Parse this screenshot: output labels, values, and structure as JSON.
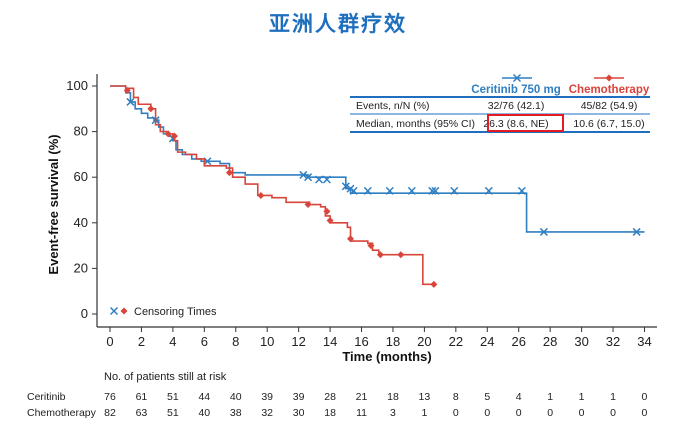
{
  "page": {
    "title": "亚洲人群疗效"
  },
  "colors": {
    "ceritinib": "#2f7fc1",
    "chemo": "#d9453a",
    "axis": "#333333",
    "header_blue": "#1f6fbf",
    "highlight": "#e31b23"
  },
  "chart_data": {
    "type": "line",
    "xlabel": "Time (months)",
    "ylabel": "Event-free survival (%)",
    "xlim": [
      0,
      35
    ],
    "ylim": [
      0,
      100
    ],
    "xticks": [
      "0",
      "2",
      "4",
      "6",
      "8",
      "10",
      "12",
      "14",
      "16",
      "18",
      "20",
      "22",
      "24",
      "26",
      "28",
      "30",
      "32",
      "34"
    ],
    "yticks": [
      "0",
      "20",
      "40",
      "60",
      "80",
      "100"
    ],
    "grid": false,
    "series": [
      {
        "name": "Ceritinib 750 mg",
        "color": "#2f7fc1",
        "points": [
          [
            0,
            100
          ],
          [
            1,
            97
          ],
          [
            1.3,
            93
          ],
          [
            1.6,
            90
          ],
          [
            2,
            88
          ],
          [
            2.4,
            86
          ],
          [
            2.8,
            85
          ],
          [
            3.1,
            82
          ],
          [
            3.4,
            79
          ],
          [
            3.8,
            78
          ],
          [
            4,
            76
          ],
          [
            4.2,
            72
          ],
          [
            4.6,
            70
          ],
          [
            5.2,
            68
          ],
          [
            5.8,
            67
          ],
          [
            7,
            66
          ],
          [
            7.6,
            62
          ],
          [
            8.6,
            61
          ],
          [
            12.2,
            61
          ],
          [
            12.6,
            60
          ],
          [
            15,
            55
          ],
          [
            15.3,
            53
          ],
          [
            26.2,
            53
          ],
          [
            26.5,
            36
          ],
          [
            34,
            36
          ]
        ],
        "censors": [
          [
            1.3,
            93
          ],
          [
            2.9,
            85
          ],
          [
            4,
            77
          ],
          [
            6.2,
            67
          ],
          [
            12.3,
            61
          ],
          [
            12.6,
            60
          ],
          [
            13.3,
            59
          ],
          [
            13.8,
            59
          ],
          [
            15.0,
            56
          ],
          [
            15.3,
            55
          ],
          [
            15.5,
            54
          ],
          [
            16.4,
            54
          ],
          [
            17.8,
            54
          ],
          [
            19.2,
            54
          ],
          [
            20.5,
            54
          ],
          [
            20.7,
            54
          ],
          [
            21.9,
            54
          ],
          [
            24.1,
            54
          ],
          [
            26.2,
            54
          ],
          [
            27.6,
            36
          ],
          [
            33.5,
            36
          ]
        ]
      },
      {
        "name": "Chemotherapy",
        "color": "#d9453a",
        "points": [
          [
            0,
            100
          ],
          [
            1,
            99
          ],
          [
            1.5,
            95
          ],
          [
            1.8,
            92
          ],
          [
            2.6,
            90
          ],
          [
            2.9,
            83
          ],
          [
            3.2,
            80
          ],
          [
            3.6,
            79
          ],
          [
            4.1,
            76
          ],
          [
            4.3,
            71
          ],
          [
            4.8,
            70
          ],
          [
            5.5,
            68
          ],
          [
            6,
            65
          ],
          [
            7.4,
            64
          ],
          [
            7.8,
            60
          ],
          [
            8.6,
            57
          ],
          [
            9.4,
            52
          ],
          [
            10.3,
            51
          ],
          [
            11.2,
            49
          ],
          [
            12.7,
            48
          ],
          [
            13.4,
            47
          ],
          [
            13.7,
            43
          ],
          [
            14,
            40
          ],
          [
            15.1,
            38
          ],
          [
            15.3,
            32
          ],
          [
            16.4,
            31
          ],
          [
            16.7,
            28
          ],
          [
            17.1,
            26
          ],
          [
            18.3,
            26
          ],
          [
            19.7,
            26
          ],
          [
            19.9,
            13
          ],
          [
            20.6,
            13
          ]
        ],
        "censors": [
          [
            1.1,
            98
          ],
          [
            2.6,
            90
          ],
          [
            3.7,
            79
          ],
          [
            4.1,
            78
          ],
          [
            7.6,
            62
          ],
          [
            9.6,
            52
          ],
          [
            12.6,
            48
          ],
          [
            13.8,
            45
          ],
          [
            14.0,
            41
          ],
          [
            15.3,
            33
          ],
          [
            16.6,
            30
          ],
          [
            17.2,
            26
          ],
          [
            18.5,
            26
          ],
          [
            20.6,
            13
          ]
        ]
      }
    ],
    "legend": {
      "marker_label": "Censoring Times",
      "placement": "bottom-left"
    },
    "summary_table": {
      "columns": [
        "",
        "Ceritinib 750 mg",
        "Chemotherapy"
      ],
      "rows": [
        [
          "Events, n/N (%)",
          "32/76 (42.1)",
          "45/82 (54.9)"
        ],
        [
          "Median, months (95% CI)",
          "26.3 (8.6, NE)",
          "10.6 (6.7, 15.0)"
        ]
      ]
    },
    "risk_table": {
      "title": "No. of patients still at risk",
      "rows": [
        {
          "label": "Ceritinib",
          "values": [
            "76",
            "61",
            "51",
            "44",
            "40",
            "39",
            "39",
            "28",
            "21",
            "18",
            "13",
            "8",
            "5",
            "4",
            "1",
            "1",
            "1",
            "0"
          ]
        },
        {
          "label": "Chemotherapy",
          "values": [
            "82",
            "63",
            "51",
            "40",
            "38",
            "32",
            "30",
            "18",
            "11",
            "3",
            "1",
            "0",
            "0",
            "0",
            "0",
            "0",
            "0",
            "0"
          ]
        }
      ]
    }
  }
}
